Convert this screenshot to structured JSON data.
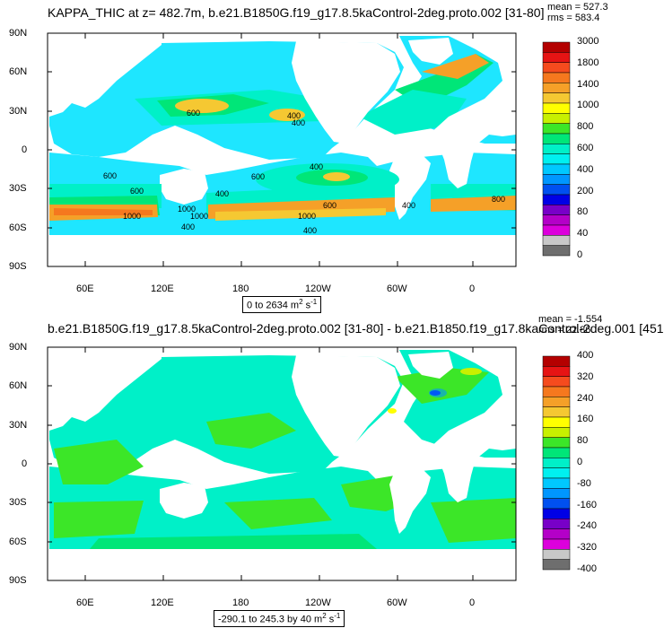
{
  "panel1": {
    "title": "KAPPA_THIC at z= 482.7m, b.e21.B1850G.f19_g17.8.5kaControl-2deg.proto.002 [31-80]",
    "stats": [
      "mean = 527.3",
      "rms = 583.4"
    ],
    "range_prefix": "0 to 2634 m",
    "range_sup": "2",
    "range_suffix": " s",
    "range_sup2": "-1",
    "colorbar": {
      "labels": [
        "3000",
        "1800",
        "1400",
        "1000",
        "800",
        "600",
        "400",
        "200",
        "80",
        "40",
        "0"
      ],
      "colors": [
        "#b40000",
        "#e61414",
        "#f54b1e",
        "#f5781e",
        "#f5a028",
        "#f5c832",
        "#ffff00",
        "#c8f000",
        "#3ce628",
        "#00e678",
        "#00f0c8",
        "#00f0f0",
        "#00c8ff",
        "#0096ff",
        "#0050f0",
        "#0000e6",
        "#7800c8",
        "#b400c8",
        "#dc00dc",
        "#c8c8c8",
        "#6e6e6e"
      ],
      "mid_labels_at_boundary": true
    },
    "contour_labels": [
      "600",
      "400",
      "400",
      "400",
      "600",
      "600",
      "400",
      "1000",
      "600",
      "1000",
      "1000",
      "1000",
      "400",
      "400",
      "600",
      "400",
      "800"
    ]
  },
  "panel2": {
    "title": "b.e21.B1850G.f19_g17.8.5kaControl-2deg.proto.002 [31-80] - b.e21.B1850.f19_g17.8kaControl-2deg.001 [451",
    "stats": [
      "mean = -1.554",
      "rms = 22.86"
    ],
    "range_prefix": "-290.1 to 245.3 by 40 m",
    "range_sup": "2",
    "range_suffix": " s",
    "range_sup2": "-1",
    "colorbar": {
      "labels": [
        "400",
        "320",
        "240",
        "160",
        "80",
        "0",
        "-80",
        "-160",
        "-240",
        "-320",
        "-400"
      ],
      "colors": [
        "#b40000",
        "#e61414",
        "#f54b1e",
        "#f5781e",
        "#f5a028",
        "#f5c832",
        "#ffff00",
        "#c8f000",
        "#3ce628",
        "#00e678",
        "#00f0c8",
        "#00f0f0",
        "#00c8ff",
        "#0096ff",
        "#0050f0",
        "#0000e6",
        "#7800c8",
        "#b400c8",
        "#dc00dc",
        "#c8c8c8",
        "#6e6e6e"
      ]
    }
  },
  "axes": {
    "lat_labels": [
      "90N",
      "60N",
      "30N",
      "0",
      "30S",
      "60S",
      "90S"
    ],
    "lon_labels": [
      "60E",
      "120E",
      "180",
      "120W",
      "60W",
      "0"
    ]
  }
}
